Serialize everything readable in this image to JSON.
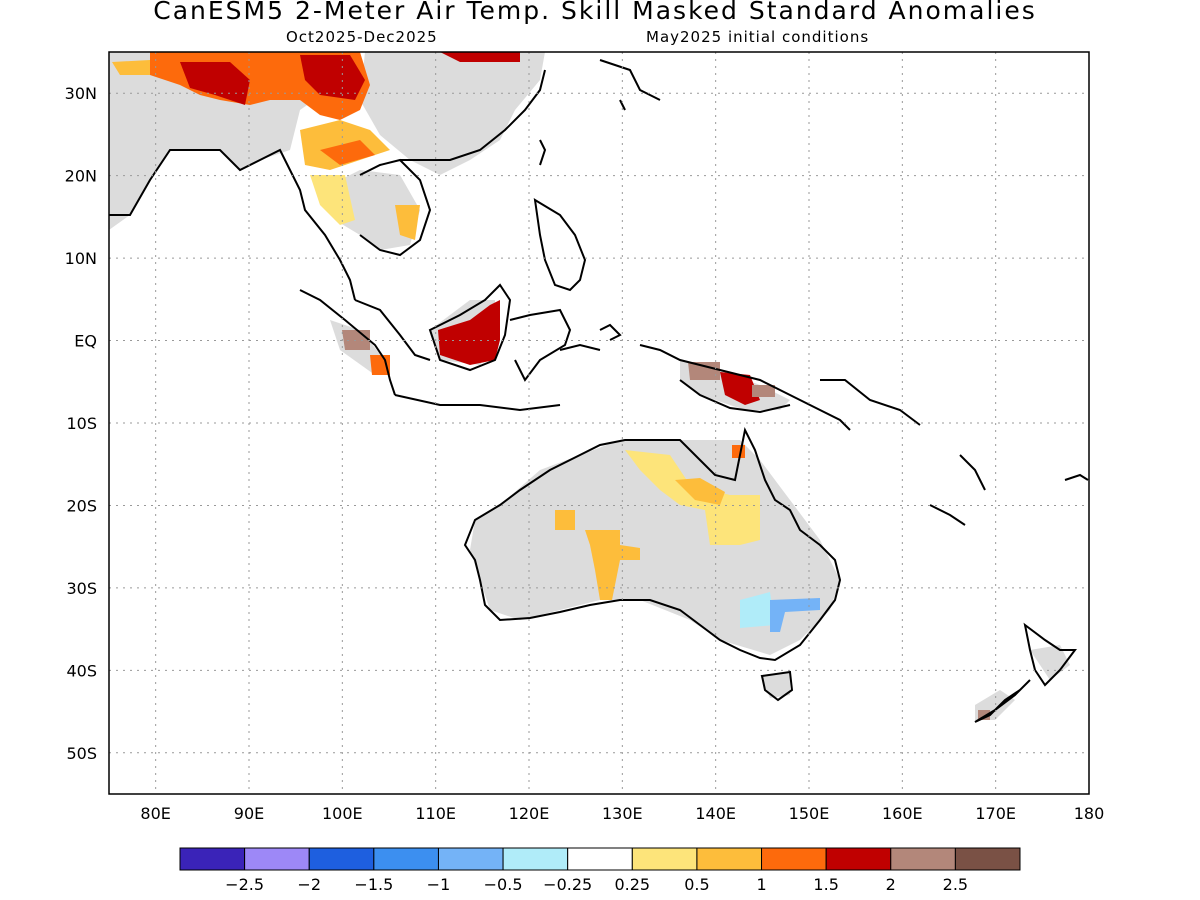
{
  "header": {
    "title": "CanESM5 2-Meter Air Temp. Skill Masked Standard Anomalies",
    "period": "Oct2025-Dec2025",
    "init": "May2025 initial conditions"
  },
  "map": {
    "lon_range": [
      75,
      180
    ],
    "lat_range": [
      -55,
      35
    ],
    "lat_ticks": [
      {
        "v": 30,
        "label": "30N"
      },
      {
        "v": 20,
        "label": "20N"
      },
      {
        "v": 10,
        "label": "10N"
      },
      {
        "v": 0,
        "label": "EQ"
      },
      {
        "v": -10,
        "label": "10S"
      },
      {
        "v": -20,
        "label": "20S"
      },
      {
        "v": -30,
        "label": "30S"
      },
      {
        "v": -40,
        "label": "40S"
      },
      {
        "v": -50,
        "label": "50S"
      }
    ],
    "lon_ticks": [
      {
        "v": 80,
        "label": "80E"
      },
      {
        "v": 90,
        "label": "90E"
      },
      {
        "v": 100,
        "label": "100E"
      },
      {
        "v": 110,
        "label": "110E"
      },
      {
        "v": 120,
        "label": "120E"
      },
      {
        "v": 130,
        "label": "130E"
      },
      {
        "v": 140,
        "label": "140E"
      },
      {
        "v": 150,
        "label": "150E"
      },
      {
        "v": 160,
        "label": "160E"
      },
      {
        "v": 170,
        "label": "170E"
      },
      {
        "v": 180,
        "label": "180"
      }
    ],
    "gridlines": true,
    "masked_color": "#dcdcdc"
  },
  "colorbar": {
    "colors": [
      "#3a23b8",
      "#9d88f7",
      "#1e5fdf",
      "#3c8ff0",
      "#74b3f7",
      "#b0ecf9",
      "#ffffff",
      "#fde47a",
      "#fdbd3b",
      "#fd6a0c",
      "#c00000",
      "#b3877a",
      "#7a5145"
    ],
    "labels": [
      "-2.5",
      "-2",
      "-1.5",
      "-1",
      "-0.5",
      "-0.25",
      "0.25",
      "0.5",
      "1",
      "1.5",
      "2",
      "2.5"
    ]
  }
}
